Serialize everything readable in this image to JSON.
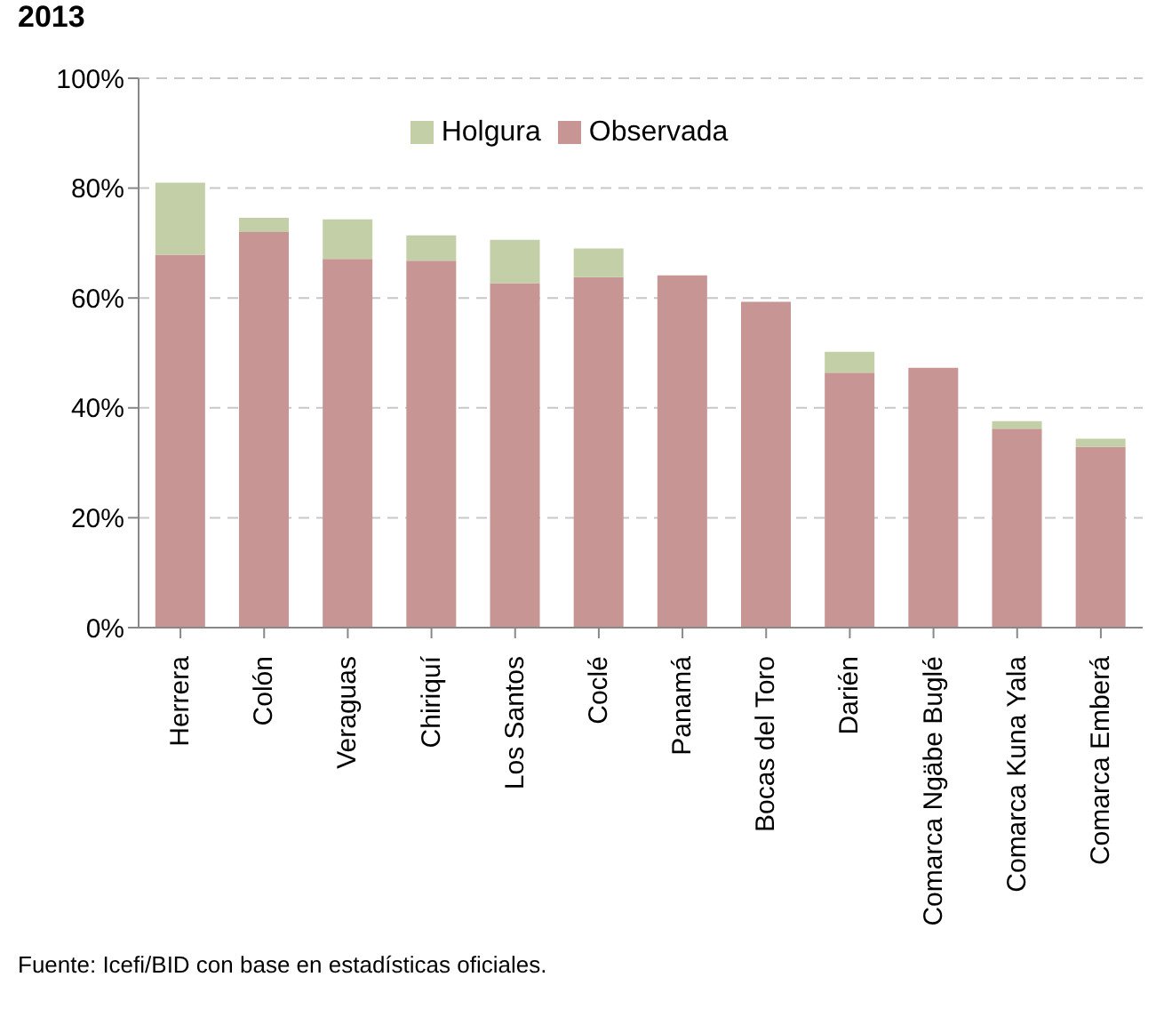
{
  "chart_data": {
    "type": "bar",
    "title": "2013",
    "stacked": true,
    "categories": [
      "Herrera",
      "Colón",
      "Veraguas",
      "Chiriquí",
      "Los Santos",
      "Coclé",
      "Panamá",
      "Bocas del Toro",
      "Darién",
      "Comarca Ngäbe Buglé",
      "Comarca Kuna Yala",
      "Comarca Emberá"
    ],
    "series": [
      {
        "name": "Observada",
        "color": "#c89595",
        "values": [
          67.9,
          72.0,
          67.1,
          66.8,
          62.7,
          63.8,
          64.1,
          59.3,
          46.4,
          47.3,
          36.2,
          32.9
        ]
      },
      {
        "name": "Holgura",
        "color": "#c3cfa6",
        "values": [
          13.1,
          2.6,
          7.2,
          4.6,
          7.9,
          5.2,
          null,
          null,
          3.8,
          null,
          1.4,
          1.5
        ]
      }
    ],
    "ylim": [
      0,
      100
    ],
    "yticks": [
      {
        "value": 0,
        "label": "0%"
      },
      {
        "value": 20,
        "label": "20%"
      },
      {
        "value": 40,
        "label": "40%"
      },
      {
        "value": 60,
        "label": "60%"
      },
      {
        "value": 80,
        "label": "80%"
      },
      {
        "value": 100,
        "label": "100%"
      }
    ],
    "grid": "y",
    "legend": "top",
    "annotations": [
      "Fuente: Icefi/BID con base en estadísticas oficiales."
    ]
  }
}
